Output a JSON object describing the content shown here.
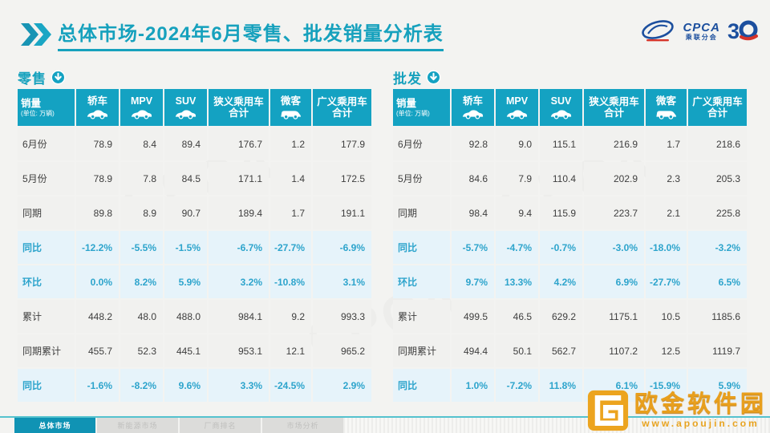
{
  "header": {
    "title_highlight": "总体市场",
    "title_rest": "-2024年6月零售、批发销量分析表",
    "cpca_logo": {
      "text": "CPCA",
      "subtext": "乘联分会",
      "anniversary": "3"
    },
    "accent_color": "#16a1bd"
  },
  "table_columns": [
    {
      "key": "sales",
      "label": "销量",
      "sub": "(单位: 万辆)"
    },
    {
      "key": "sedan",
      "label": "轿车",
      "icon": "sedan-icon"
    },
    {
      "key": "mpv",
      "label": "MPV",
      "icon": "mpv-icon"
    },
    {
      "key": "suv",
      "label": "SUV",
      "icon": "suv-icon"
    },
    {
      "key": "narrow-pv-total",
      "label": "狭义乘用车",
      "label2": "合计"
    },
    {
      "key": "microvan",
      "label": "微客",
      "icon": "minibus-icon"
    },
    {
      "key": "broad-pv-total",
      "label": "广义乘用车",
      "label2": "合计"
    }
  ],
  "tables": [
    {
      "section_label": "零售",
      "rows": [
        {
          "label": "6月份",
          "highlight": false,
          "values": [
            "78.9",
            "8.4",
            "89.4",
            "176.7",
            "1.2",
            "177.9"
          ]
        },
        {
          "label": "5月份",
          "highlight": false,
          "values": [
            "78.9",
            "7.8",
            "84.5",
            "171.1",
            "1.4",
            "172.5"
          ]
        },
        {
          "label": "同期",
          "highlight": false,
          "values": [
            "89.8",
            "8.9",
            "90.7",
            "189.4",
            "1.7",
            "191.1"
          ]
        },
        {
          "label": "同比",
          "highlight": true,
          "values": [
            "-12.2%",
            "-5.5%",
            "-1.5%",
            "-6.7%",
            "-27.7%",
            "-6.9%"
          ]
        },
        {
          "label": "环比",
          "highlight": true,
          "values": [
            "0.0%",
            "8.2%",
            "5.9%",
            "3.2%",
            "-10.8%",
            "3.1%"
          ]
        },
        {
          "label": "累计",
          "highlight": false,
          "values": [
            "448.2",
            "48.0",
            "488.0",
            "984.1",
            "9.2",
            "993.3"
          ]
        },
        {
          "label": "同期累计",
          "highlight": false,
          "values": [
            "455.7",
            "52.3",
            "445.1",
            "953.1",
            "12.1",
            "965.2"
          ]
        },
        {
          "label": "同比",
          "highlight": true,
          "values": [
            "-1.6%",
            "-8.2%",
            "9.6%",
            "3.3%",
            "-24.5%",
            "2.9%"
          ]
        }
      ]
    },
    {
      "section_label": "批发",
      "rows": [
        {
          "label": "6月份",
          "highlight": false,
          "values": [
            "92.8",
            "9.0",
            "115.1",
            "216.9",
            "1.7",
            "218.6"
          ]
        },
        {
          "label": "5月份",
          "highlight": false,
          "values": [
            "84.6",
            "7.9",
            "110.4",
            "202.9",
            "2.3",
            "205.3"
          ]
        },
        {
          "label": "同期",
          "highlight": false,
          "values": [
            "98.4",
            "9.4",
            "115.9",
            "223.7",
            "2.1",
            "225.8"
          ]
        },
        {
          "label": "同比",
          "highlight": true,
          "values": [
            "-5.7%",
            "-4.7%",
            "-0.7%",
            "-3.0%",
            "-18.0%",
            "-3.2%"
          ]
        },
        {
          "label": "环比",
          "highlight": true,
          "values": [
            "9.7%",
            "13.3%",
            "4.2%",
            "6.9%",
            "-27.7%",
            "6.5%"
          ]
        },
        {
          "label": "累计",
          "highlight": false,
          "values": [
            "499.5",
            "46.5",
            "629.2",
            "1175.1",
            "10.5",
            "1185.6"
          ]
        },
        {
          "label": "同期累计",
          "highlight": false,
          "values": [
            "494.4",
            "50.1",
            "562.7",
            "1107.2",
            "12.5",
            "1119.7"
          ]
        },
        {
          "label": "同比",
          "highlight": true,
          "values": [
            "1.0%",
            "-7.2%",
            "11.8%",
            "6.1%",
            "-15.9%",
            "5.9%"
          ]
        }
      ]
    }
  ],
  "footer": {
    "tabs": [
      {
        "label": "总体市场",
        "active": true
      },
      {
        "label": "新能源市场",
        "active": false
      },
      {
        "label": "厂商排名",
        "active": false
      },
      {
        "label": "市场分析",
        "active": false
      }
    ]
  },
  "watermark": {
    "brand": "欧金软件园",
    "url": "www.apoujin.com",
    "pattern_text": "CPCA"
  },
  "colors": {
    "teal": "#14a2c2",
    "highlight_bg": "#e6f3fa",
    "highlight_text": "#2da4cc",
    "row_bg": "#f1f1ef",
    "gold": "#e89f1d",
    "cpca_blue": "#1c4f9e",
    "cpca_red": "#d6342a"
  }
}
